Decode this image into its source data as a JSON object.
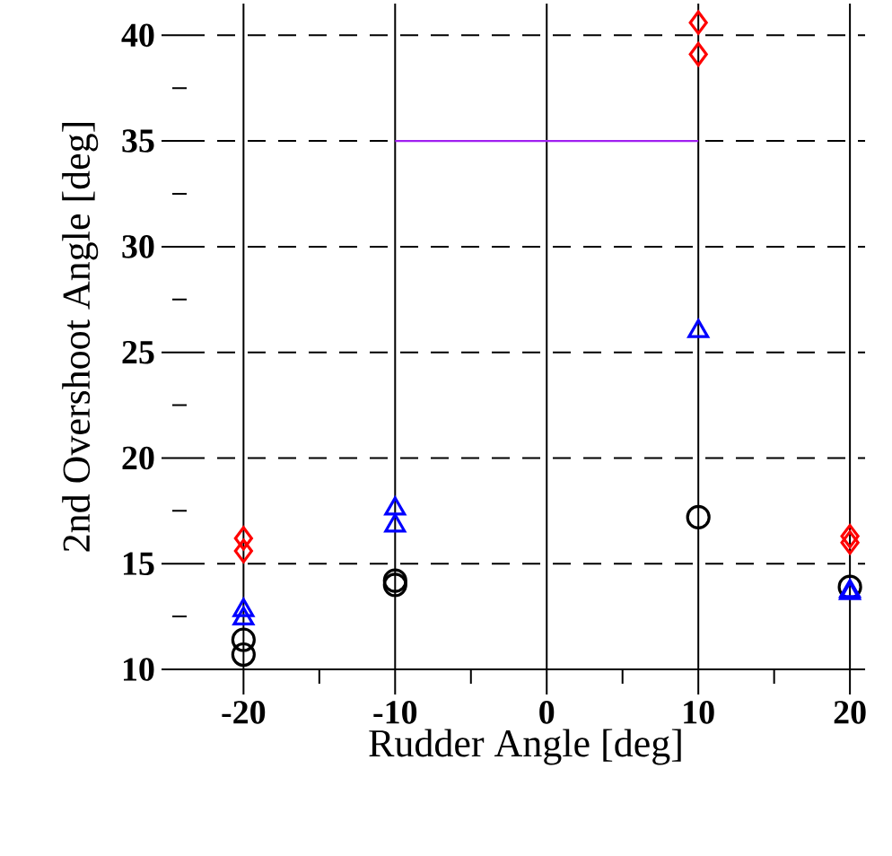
{
  "chart_data": {
    "type": "scatter",
    "xlabel": "Rudder Angle [deg]",
    "ylabel": "2nd Overshoot Angle [deg]",
    "xlim": [
      -23.75,
      21
    ],
    "ylim": [
      10,
      41.5
    ],
    "xticks": [
      -20,
      -10,
      0,
      10,
      20
    ],
    "yticks": [
      10,
      15,
      20,
      25,
      30,
      35,
      40
    ],
    "grid": true,
    "series": [
      {
        "marker": "circle",
        "color": "#000000",
        "x": [
          -20,
          -20,
          -10,
          -10,
          10,
          20
        ],
        "values": [
          11.4,
          10.7,
          14.2,
          14.0,
          17.2,
          13.9
        ]
      },
      {
        "marker": "triangle",
        "color": "#0000ff",
        "x": [
          -20,
          -20,
          -10,
          -10,
          10,
          20,
          20
        ],
        "values": [
          12.8,
          12.4,
          17.6,
          16.8,
          26.0,
          13.7,
          13.6
        ]
      },
      {
        "marker": "diamond",
        "color": "#ff0000",
        "x": [
          -20,
          -20,
          10,
          10,
          20,
          20
        ],
        "values": [
          16.2,
          15.6,
          40.6,
          39.1,
          16.3,
          16.0
        ]
      },
      {
        "type": "line",
        "color": "#a020f0",
        "x": [
          -10,
          10
        ],
        "values": [
          35,
          35
        ]
      }
    ]
  }
}
